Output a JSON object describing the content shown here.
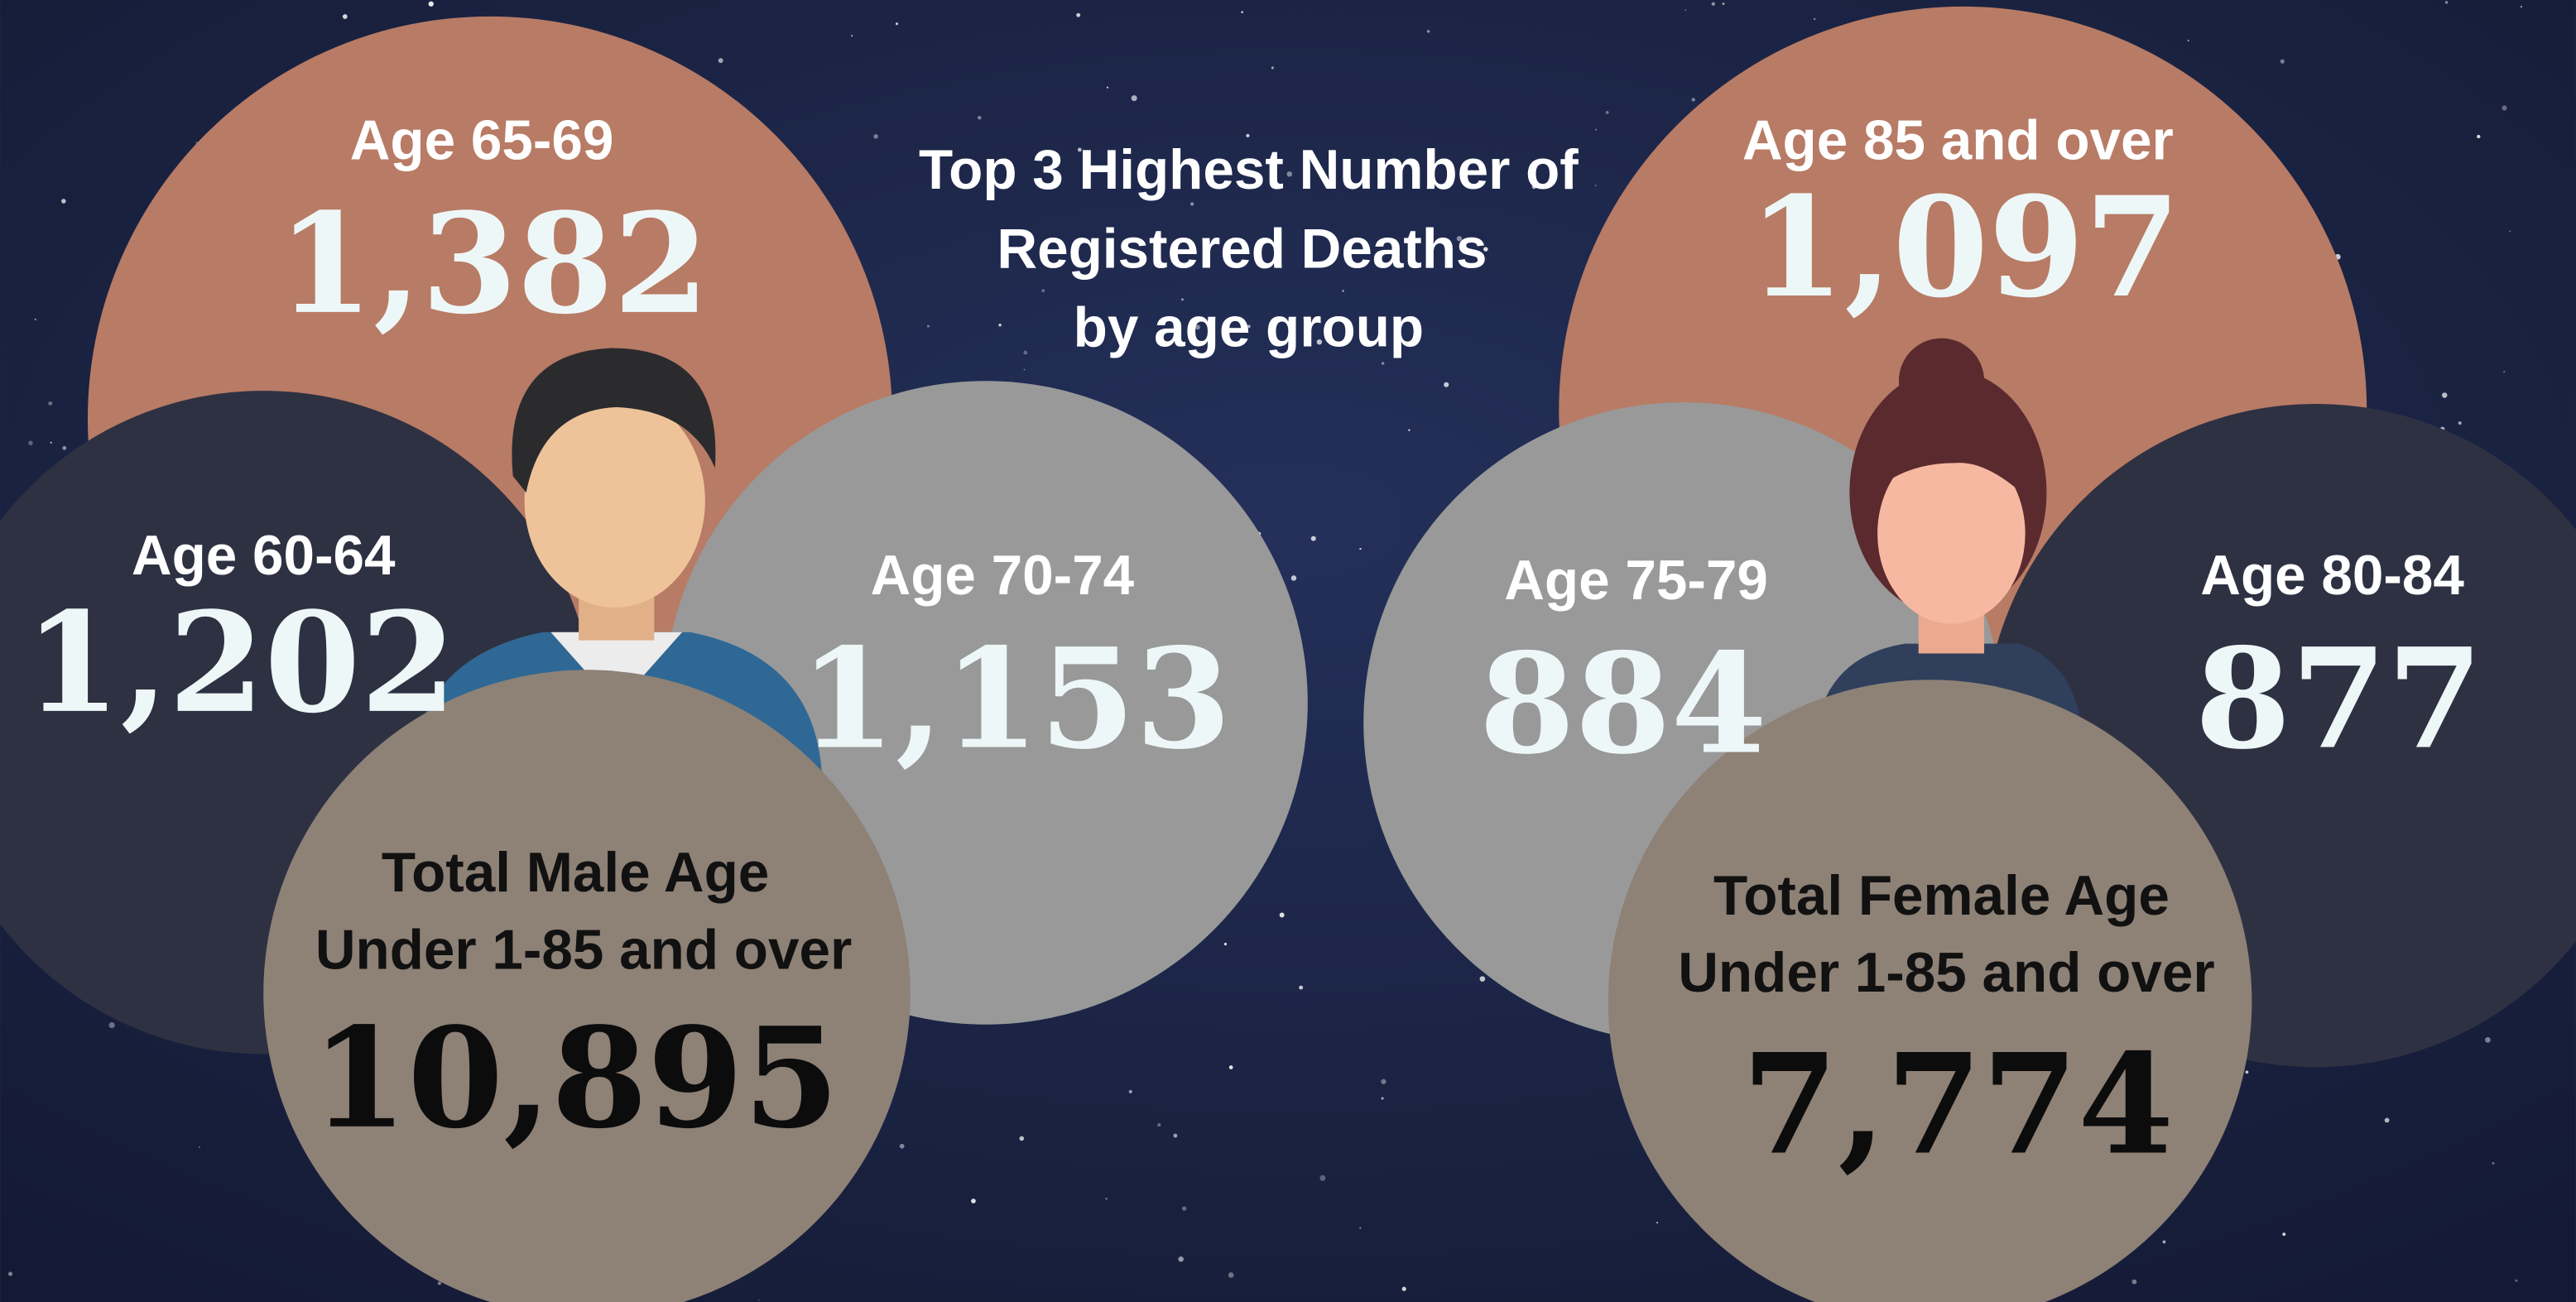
{
  "title": [
    "Top 3 Highest Number of",
    "Registered Deaths",
    "by age group"
  ],
  "male": {
    "groups": [
      {
        "label": "Age 65-69",
        "value": "1,382"
      },
      {
        "label": "Age 60-64",
        "value": "1,202"
      },
      {
        "label": "Age 70-74",
        "value": "1,153"
      }
    ],
    "total": {
      "label": [
        "Total Male Age",
        "Under 1-85 and over"
      ],
      "value": "10,895"
    }
  },
  "female": {
    "groups": [
      {
        "label": "Age 85 and over",
        "value": "1,097"
      },
      {
        "label": "Age 75-79",
        "value": "884"
      },
      {
        "label": "Age 80-84",
        "value": "877"
      }
    ],
    "total": {
      "label": [
        "Total Female Age",
        "Under 1-85 and over"
      ],
      "value": "7,774"
    }
  }
}
